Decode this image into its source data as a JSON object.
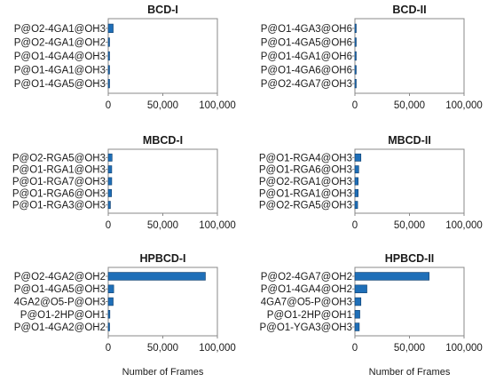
{
  "chart_data": [
    {
      "type": "bar",
      "orientation": "horizontal",
      "title": "BCD-I",
      "categories": [
        "P@O2-4GA1@OH3",
        "P@O2-4GA1@OH2",
        "P@O1-4GA4@OH3",
        "P@O1-4GA1@OH3",
        "P@O1-4GA5@OH3"
      ],
      "values": [
        4500,
        900,
        700,
        600,
        500
      ],
      "xlim": [
        0,
        100000
      ],
      "xticks": [
        "0",
        "50,000",
        "100,000"
      ],
      "xlabel": ""
    },
    {
      "type": "bar",
      "orientation": "horizontal",
      "title": "BCD-II",
      "categories": [
        "P@O1-4GA3@OH6",
        "P@O1-4GA5@OH6",
        "P@O1-4GA1@OH6",
        "P@O1-4GA6@OH6",
        "P@O2-4GA7@OH3"
      ],
      "values": [
        900,
        800,
        700,
        700,
        600
      ],
      "xlim": [
        0,
        100000
      ],
      "xticks": [
        "0",
        "50,000",
        "100,000"
      ],
      "xlabel": ""
    },
    {
      "type": "bar",
      "orientation": "horizontal",
      "title": "MBCD-I",
      "categories": [
        "P@O2-RGA5@OH3",
        "P@O1-RGA1@OH3",
        "P@O1-RGA7@OH3",
        "P@O1-RGA6@OH3",
        "P@O1-RGA3@OH3"
      ],
      "values": [
        3500,
        3200,
        3200,
        3000,
        2000
      ],
      "xlim": [
        0,
        100000
      ],
      "xticks": [
        "0",
        "50,000",
        "100,000"
      ],
      "xlabel": ""
    },
    {
      "type": "bar",
      "orientation": "horizontal",
      "title": "MBCD-II",
      "categories": [
        "P@O1-RGA4@OH3",
        "P@O1-RGA6@OH3",
        "P@O2-RGA1@OH3",
        "P@O1-RGA1@OH3",
        "P@O2-RGA5@OH3"
      ],
      "values": [
        5500,
        3500,
        3000,
        3000,
        2500
      ],
      "xlim": [
        0,
        100000
      ],
      "xticks": [
        "0",
        "50,000",
        "100,000"
      ],
      "xlabel": ""
    },
    {
      "type": "bar",
      "orientation": "horizontal",
      "title": "HPBCD-I",
      "categories": [
        "P@O2-4GA2@OH2",
        "P@O1-4GA5@OH3",
        "4GA2@O5-P@OH3",
        "P@O1-2HP@OH1",
        "P@O1-4GA2@OH2"
      ],
      "values": [
        89000,
        5000,
        4500,
        1500,
        1200
      ],
      "xlim": [
        0,
        100000
      ],
      "xticks": [
        "0",
        "50,000",
        "100,000"
      ],
      "xlabel": "Number of Frames"
    },
    {
      "type": "bar",
      "orientation": "horizontal",
      "title": "HPBCD-II",
      "categories": [
        "P@O2-4GA7@OH2",
        "P@O1-4GA4@OH2",
        "4GA7@O5-P@OH3",
        "P@O1-2HP@OH1",
        "P@O1-YGA3@OH3"
      ],
      "values": [
        68000,
        11000,
        5500,
        4500,
        4000
      ],
      "xlim": [
        0,
        100000
      ],
      "xticks": [
        "0",
        "50,000",
        "100,000"
      ],
      "xlabel": "Number of Frames"
    }
  ],
  "colors": {
    "bar_fill": "#1f6fb8",
    "bar_stroke": "#0e3d6b",
    "axis": "#888888"
  }
}
